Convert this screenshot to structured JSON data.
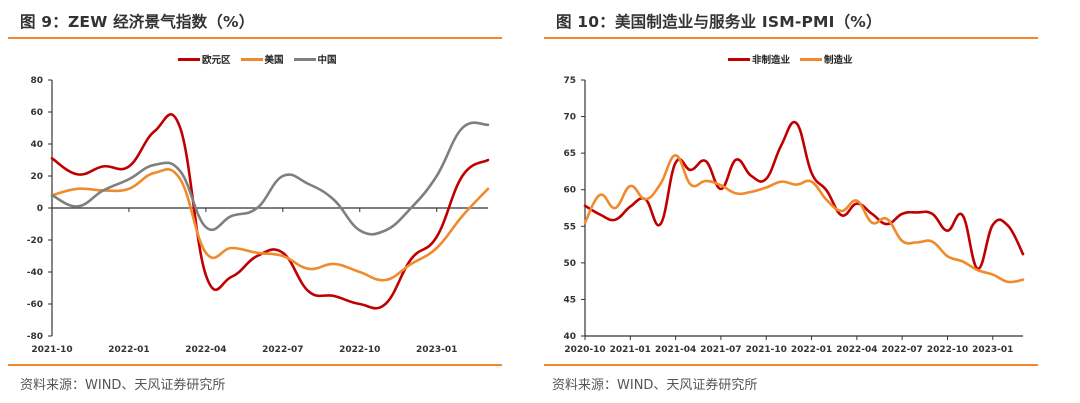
{
  "charts": {
    "left": {
      "title": "图 9：ZEW 经济景气指数（%）",
      "source": "资料来源：WIND、天风证券研究所"
    },
    "right": {
      "title": "图 10：美国制造业与服务业 ISM-PMI（%）",
      "source": "资料来源：WIND、天风证券研究所"
    }
  },
  "chart_data": [
    {
      "type": "line",
      "title": "图 9：ZEW 经济景气指数（%）",
      "xlabel": "",
      "ylabel": "",
      "ylim": [
        -80,
        80
      ],
      "yticks": [
        80,
        60,
        40,
        20,
        0,
        -20,
        -40,
        -60,
        -80
      ],
      "negative_tick_color": "#ff0000",
      "x_tick_labels": [
        "2021-10",
        "2022-01",
        "2022-04",
        "2022-07",
        "2022-10",
        "2023-01"
      ],
      "x": [
        "2021-10",
        "2021-11",
        "2021-12",
        "2022-01",
        "2022-02",
        "2022-03",
        "2022-04",
        "2022-05",
        "2022-06",
        "2022-07",
        "2022-08",
        "2022-09",
        "2022-10",
        "2022-11",
        "2022-12",
        "2023-01",
        "2023-02",
        "2023-03"
      ],
      "legend_position": "top-center",
      "grid": false,
      "series": [
        {
          "name": "欧元区",
          "color": "#c00000",
          "values": [
            31,
            21,
            26,
            26,
            48,
            50,
            -42,
            -43,
            -30,
            -28,
            -52,
            -55,
            -60,
            -60,
            -32,
            -18,
            20,
            30
          ]
        },
        {
          "name": "美国",
          "color": "#f08a2c",
          "values": [
            8,
            12,
            11,
            12,
            22,
            18,
            -28,
            -25,
            -28,
            -30,
            -38,
            -35,
            -40,
            -45,
            -35,
            -25,
            -5,
            12
          ]
        },
        {
          "name": "中国",
          "color": "#7f7f7f",
          "values": [
            8,
            1,
            11,
            18,
            27,
            23,
            -12,
            -5,
            0,
            20,
            15,
            5,
            -14,
            -14,
            0,
            20,
            50,
            52
          ]
        }
      ]
    },
    {
      "type": "line",
      "title": "图 10：美国制造业与服务业 ISM-PMI（%）",
      "xlabel": "",
      "ylabel": "",
      "ylim": [
        40,
        75
      ],
      "yticks": [
        75,
        70,
        65,
        60,
        55,
        50,
        45,
        40
      ],
      "x_tick_labels": [
        "2020-10",
        "2021-01",
        "2021-04",
        "2021-07",
        "2021-10",
        "2022-01",
        "2022-04",
        "2022-07",
        "2022-10",
        "2023-01"
      ],
      "x": [
        "2020-10",
        "2020-11",
        "2020-12",
        "2021-01",
        "2021-02",
        "2021-03",
        "2021-04",
        "2021-05",
        "2021-06",
        "2021-07",
        "2021-08",
        "2021-09",
        "2021-10",
        "2021-11",
        "2021-12",
        "2022-01",
        "2022-02",
        "2022-03",
        "2022-04",
        "2022-05",
        "2022-06",
        "2022-07",
        "2022-08",
        "2022-09",
        "2022-10",
        "2022-11",
        "2022-12",
        "2023-01",
        "2023-02",
        "2023-03"
      ],
      "legend_position": "top-center",
      "grid": false,
      "series": [
        {
          "name": "非制造业",
          "color": "#c00000",
          "values": [
            57.8,
            56.6,
            55.9,
            57.7,
            58.7,
            55.3,
            63.7,
            62.7,
            63.9,
            60.1,
            64.1,
            61.9,
            61.5,
            66.1,
            69.1,
            62.3,
            59.9,
            56.5,
            58.1,
            56.7,
            55.3,
            56.7,
            56.9,
            56.7,
            54.4,
            56.5,
            49.2,
            55.2,
            55.1,
            51.2
          ]
        },
        {
          "name": "制造业",
          "color": "#f08a2c",
          "values": [
            55.5,
            59.3,
            57.5,
            60.5,
            58.7,
            60.8,
            64.7,
            60.7,
            61.2,
            60.6,
            59.5,
            59.7,
            60.3,
            61.1,
            60.7,
            61.1,
            58.6,
            57.1,
            58.5,
            55.5,
            56.0,
            53.0,
            52.8,
            52.9,
            50.9,
            50.2,
            49.0,
            48.4,
            47.4,
            47.7
          ]
        }
      ]
    }
  ]
}
